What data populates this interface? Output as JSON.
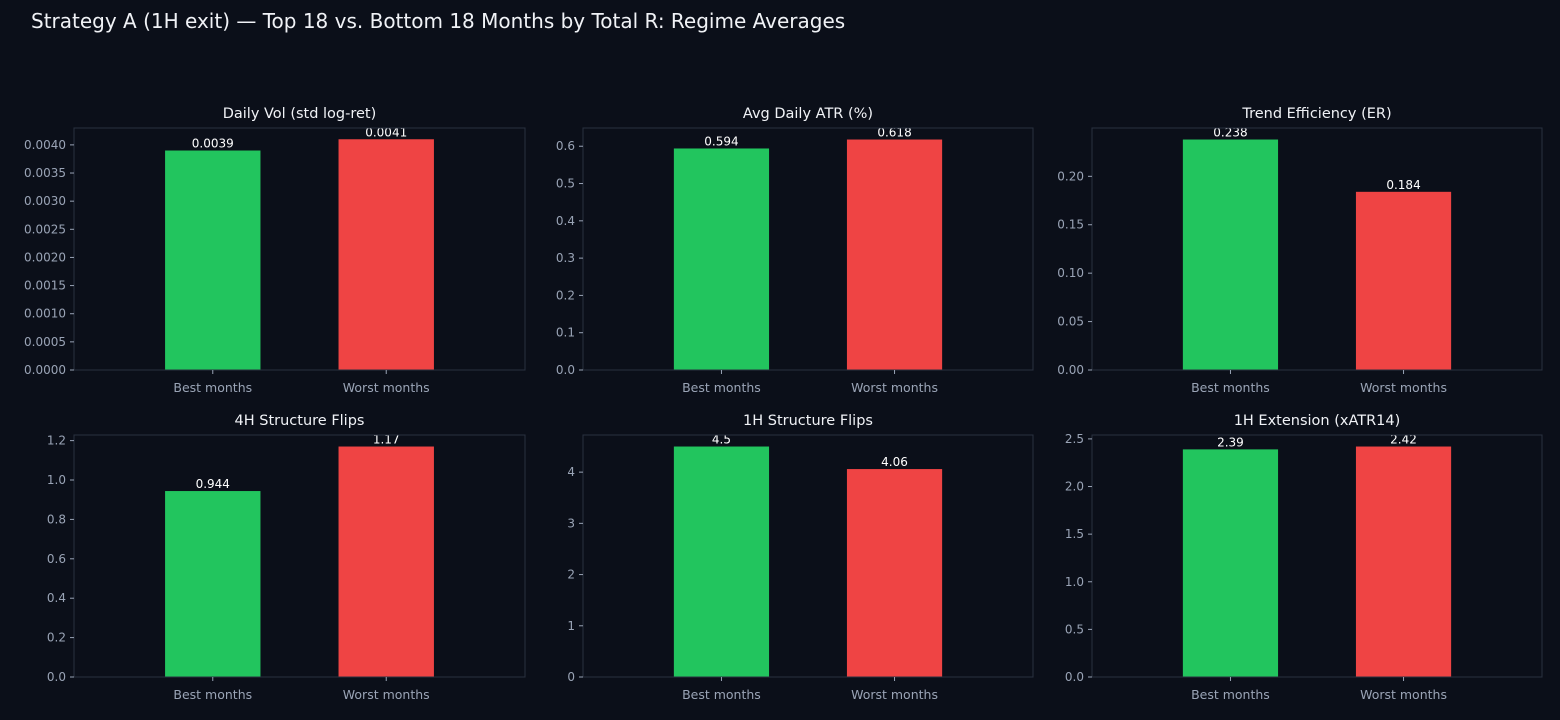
{
  "title": "Strategy A (1H exit) — Top 18 vs. Bottom 18 Months by Total R: Regime Averages",
  "colors": {
    "background": "#0b0f19",
    "best": "#22c55e",
    "worst": "#ef4444",
    "axis": "#2a3140",
    "tick_text": "#9aa4b6",
    "label_text": "#ffffff"
  },
  "chart_data": [
    {
      "type": "bar",
      "title": "Daily Vol (std log-ret)",
      "categories": [
        "Best months",
        "Worst months"
      ],
      "values": [
        0.0039,
        0.0041
      ],
      "value_labels": [
        "0.0039",
        "0.0041"
      ],
      "ylim": [
        0,
        0.0043
      ],
      "yticks": [
        0,
        0.0005,
        0.001,
        0.0015,
        0.002,
        0.0025,
        0.003,
        0.0035,
        0.004
      ],
      "ytick_labels": [
        "0.0000",
        "0.0005",
        "0.0010",
        "0.0015",
        "0.0020",
        "0.0025",
        "0.0030",
        "0.0035",
        "0.0040"
      ],
      "xlabel": "",
      "ylabel": "",
      "grid": false
    },
    {
      "type": "bar",
      "title": "Avg Daily ATR (%)",
      "categories": [
        "Best months",
        "Worst months"
      ],
      "values": [
        0.594,
        0.618
      ],
      "value_labels": [
        "0.594",
        "0.618"
      ],
      "ylim": [
        0,
        0.6489
      ],
      "yticks": [
        0,
        0.1,
        0.2,
        0.3,
        0.4,
        0.5,
        0.6
      ],
      "ytick_labels": [
        "0.0",
        "0.1",
        "0.2",
        "0.3",
        "0.4",
        "0.5",
        "0.6"
      ],
      "xlabel": "",
      "ylabel": "",
      "grid": false
    },
    {
      "type": "bar",
      "title": "Trend Efficiency (ER)",
      "categories": [
        "Best months",
        "Worst months"
      ],
      "values": [
        0.238,
        0.184
      ],
      "value_labels": [
        "0.238",
        "0.184"
      ],
      "ylim": [
        0,
        0.2499
      ],
      "yticks": [
        0,
        0.05,
        0.1,
        0.15,
        0.2
      ],
      "ytick_labels": [
        "0.00",
        "0.05",
        "0.10",
        "0.15",
        "0.20"
      ],
      "xlabel": "",
      "ylabel": "",
      "grid": false
    },
    {
      "type": "bar",
      "title": "4H Structure Flips",
      "categories": [
        "Best months",
        "Worst months"
      ],
      "values": [
        0.944,
        1.17
      ],
      "value_labels": [
        "0.944",
        "1.17"
      ],
      "ylim": [
        0,
        1.2285
      ],
      "yticks": [
        0,
        0.2,
        0.4,
        0.6,
        0.8,
        1.0,
        1.2
      ],
      "ytick_labels": [
        "0.0",
        "0.2",
        "0.4",
        "0.6",
        "0.8",
        "1.0",
        "1.2"
      ],
      "xlabel": "",
      "ylabel": "",
      "grid": false
    },
    {
      "type": "bar",
      "title": "1H Structure Flips",
      "categories": [
        "Best months",
        "Worst months"
      ],
      "values": [
        4.5,
        4.06
      ],
      "value_labels": [
        "4.5",
        "4.06"
      ],
      "ylim": [
        0,
        4.725
      ],
      "yticks": [
        0,
        1,
        2,
        3,
        4
      ],
      "ytick_labels": [
        "0",
        "1",
        "2",
        "3",
        "4"
      ],
      "xlabel": "",
      "ylabel": "",
      "grid": false
    },
    {
      "type": "bar",
      "title": "1H Extension (xATR14)",
      "categories": [
        "Best months",
        "Worst months"
      ],
      "values": [
        2.39,
        2.42
      ],
      "value_labels": [
        "2.39",
        "2.42"
      ],
      "ylim": [
        0,
        2.541
      ],
      "yticks": [
        0,
        0.5,
        1.0,
        1.5,
        2.0,
        2.5
      ],
      "ytick_labels": [
        "0.0",
        "0.5",
        "1.0",
        "1.5",
        "2.0",
        "2.5"
      ],
      "xlabel": "",
      "ylabel": "",
      "grid": false
    }
  ]
}
